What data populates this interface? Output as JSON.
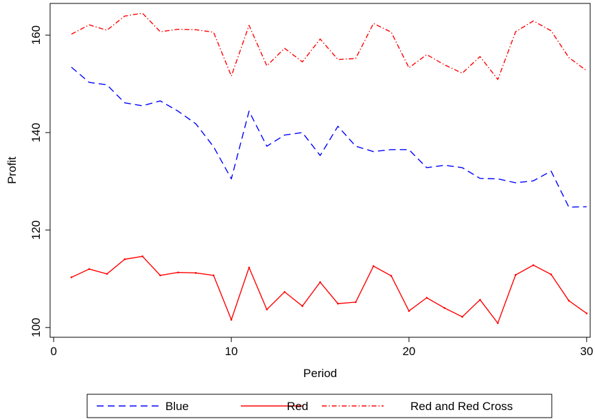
{
  "chart_data": {
    "type": "line",
    "title": "",
    "xlabel": "Period",
    "ylabel": "Profit",
    "xlim": [
      -0.2,
      30.2
    ],
    "ylim": [
      98,
      166.5
    ],
    "xticks": [
      0,
      10,
      20,
      30
    ],
    "yticks": [
      100,
      120,
      140,
      160
    ],
    "x": [
      1,
      2,
      3,
      4,
      5,
      6,
      7,
      8,
      9,
      10,
      11,
      12,
      13,
      14,
      15,
      16,
      17,
      18,
      19,
      20,
      21,
      22,
      23,
      24,
      25,
      26,
      27,
      28,
      29,
      30
    ],
    "grid": false,
    "legend_position": "bottom",
    "series": [
      {
        "name": "Blue",
        "color": "#0000ff",
        "style": "dash",
        "values": [
          153.4,
          150.3,
          149.8,
          146.1,
          145.5,
          146.5,
          144.4,
          141.8,
          137.1,
          130.5,
          144.4,
          137.2,
          139.5,
          140.0,
          135.3,
          141.3,
          137.2,
          136.1,
          136.5,
          136.5,
          132.8,
          133.3,
          132.8,
          130.6,
          130.5,
          129.7,
          130.1,
          132.1,
          124.7,
          124.8
        ]
      },
      {
        "name": "Red",
        "color": "#ff0000",
        "style": "solid",
        "values": [
          110.3,
          112.0,
          111.0,
          114.0,
          114.6,
          110.7,
          111.3,
          111.2,
          110.7,
          101.6,
          112.3,
          103.7,
          107.3,
          104.4,
          109.3,
          104.9,
          105.2,
          112.6,
          110.6,
          103.4,
          106.1,
          104.0,
          102.2,
          105.7,
          100.9,
          110.8,
          112.8,
          110.9,
          105.5,
          102.9
        ]
      },
      {
        "name": "Red and Red Cross",
        "color": "#ff0000",
        "style": "dashdot",
        "values": [
          160.2,
          162.1,
          161.0,
          163.9,
          164.5,
          160.7,
          161.2,
          161.1,
          160.6,
          151.6,
          162.0,
          153.7,
          157.3,
          154.5,
          159.2,
          155.0,
          155.2,
          162.4,
          160.6,
          153.3,
          156.0,
          153.9,
          152.2,
          155.6,
          150.9,
          160.7,
          162.9,
          160.9,
          155.4,
          152.7
        ]
      }
    ]
  }
}
